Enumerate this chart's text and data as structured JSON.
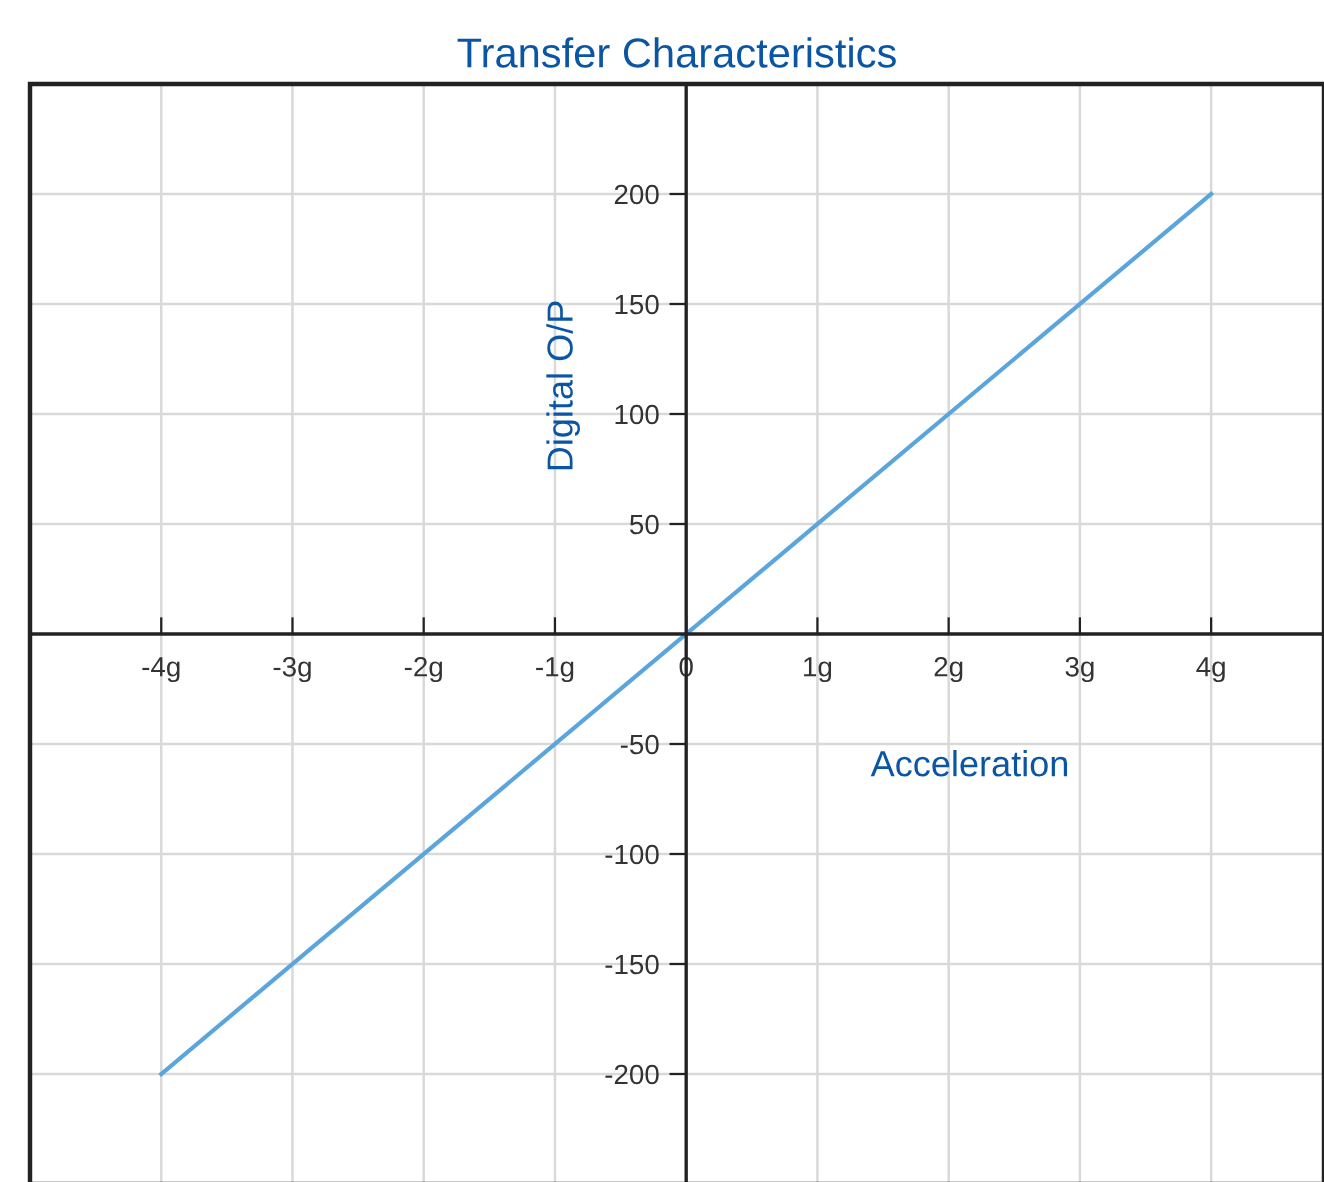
{
  "chart_data": {
    "type": "line",
    "title": "Transfer Characteristics",
    "xlabel": "Acceleration",
    "ylabel": "Digital O/P",
    "x": [
      -4,
      4
    ],
    "series": [
      {
        "color": "#5aa5dc",
        "values": [
          -200,
          200
        ]
      }
    ],
    "xlim": [
      -5,
      4.86
    ],
    "ylim": [
      -250,
      250
    ],
    "xticks": [
      {
        "value": -4,
        "label": "-4g"
      },
      {
        "value": -3,
        "label": "-3g"
      },
      {
        "value": -2,
        "label": "-2g"
      },
      {
        "value": -1,
        "label": "-1g"
      },
      0,
      {
        "value": 1,
        "label": "1g"
      },
      {
        "value": 2,
        "label": "2g"
      },
      {
        "value": 3,
        "label": "3g"
      },
      {
        "value": 4,
        "label": "4g"
      }
    ],
    "yticks": [
      -200,
      -150,
      -100,
      -50,
      50,
      100,
      150,
      200
    ],
    "grid": true,
    "legend": false,
    "marker": "none",
    "line_style": "solid"
  }
}
